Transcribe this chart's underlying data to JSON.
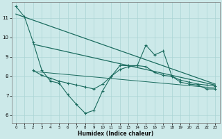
{
  "xlabel": "Humidex (Indice chaleur)",
  "bg_color": "#cce9e9",
  "grid_color": "#aad4d4",
  "line_color": "#1a6b5e",
  "x_ticks": [
    0,
    1,
    2,
    3,
    4,
    5,
    6,
    7,
    8,
    9,
    10,
    11,
    12,
    13,
    14,
    15,
    16,
    17,
    18,
    19,
    20,
    21,
    22,
    23
  ],
  "y_ticks": [
    6,
    7,
    8,
    9,
    10,
    11
  ],
  "xlim": [
    -0.5,
    23.5
  ],
  "ylim": [
    5.6,
    11.8
  ],
  "line1_x": [
    0,
    1,
    2,
    3,
    4,
    5,
    6,
    7,
    8,
    9,
    10,
    11,
    12,
    13,
    14,
    15,
    16,
    17,
    18,
    19,
    20,
    21,
    22,
    23
  ],
  "line1_y": [
    11.6,
    11.05,
    9.75,
    8.3,
    7.75,
    7.65,
    7.05,
    6.55,
    6.1,
    6.25,
    7.25,
    8.0,
    8.55,
    8.55,
    8.55,
    9.6,
    9.1,
    9.3,
    8.0,
    7.7,
    7.6,
    7.55,
    7.35,
    7.35
  ],
  "line2_x": [
    2,
    3,
    4,
    5,
    6,
    7,
    8,
    9,
    10,
    11,
    12,
    13,
    14,
    15,
    16,
    17,
    18,
    19,
    20,
    21,
    22,
    23
  ],
  "line2_y": [
    8.3,
    8.05,
    7.9,
    7.75,
    7.65,
    7.55,
    7.45,
    7.35,
    7.6,
    8.0,
    8.35,
    8.5,
    8.55,
    8.5,
    8.2,
    8.05,
    8.0,
    7.8,
    7.7,
    7.6,
    7.55,
    7.5
  ],
  "trend1_x": [
    0,
    23
  ],
  "trend1_y": [
    11.2,
    7.6
  ],
  "trend2_x": [
    2,
    23
  ],
  "trend2_y": [
    9.65,
    7.55
  ],
  "trend3_x": [
    2,
    23
  ],
  "trend3_y": [
    8.25,
    7.4
  ]
}
